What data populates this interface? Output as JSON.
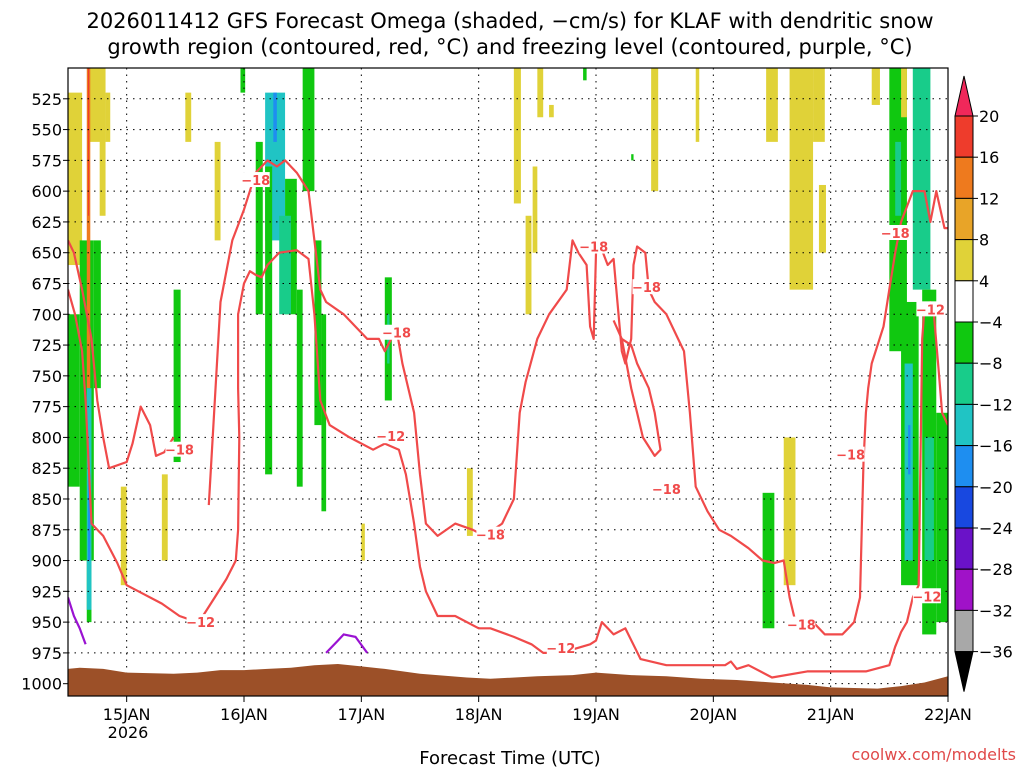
{
  "chart_data": {
    "type": "time-height-forecast",
    "title_line1": "2026011412 GFS Forecast Omega (shaded, −cm/s) for KLAF with dendritic snow",
    "title_line2": "growth region (contoured, red, °C) and freezing level (contoured, purple, °C)",
    "xlabel": "Forecast Time (UTC)",
    "credit": "coolwx.com/modelts",
    "x_ticks": [
      "15JAN",
      "16JAN",
      "17JAN",
      "18JAN",
      "19JAN",
      "20JAN",
      "21JAN",
      "22JAN"
    ],
    "x_subtick": "2026",
    "x_range_days": [
      14.5,
      22.0
    ],
    "y_ticks": [
      525,
      550,
      575,
      600,
      625,
      650,
      675,
      700,
      725,
      750,
      775,
      800,
      825,
      850,
      875,
      900,
      925,
      950,
      975,
      1000
    ],
    "y_range_hpa": [
      500,
      1010
    ],
    "colorbar_labels": [
      "20",
      "16",
      "12",
      "8",
      "4",
      "−4",
      "−8",
      "−12",
      "−16",
      "−20",
      "−24",
      "−28",
      "−32",
      "−36"
    ],
    "colorbar_colors": [
      "#f0285a",
      "#ee3c2c",
      "#ee7a1e",
      "#e8a428",
      "#e0d238",
      "#ffffff",
      "#10c810",
      "#18cc8a",
      "#20c4c4",
      "#1e8ef0",
      "#1848e0",
      "#6a12c8",
      "#a012c8",
      "#a8a8a8",
      "#000000"
    ],
    "contour_color": "#f04a4a",
    "freezing_color": "#9a12d2",
    "ground_color": "#9c5028",
    "contour_labels": [
      {
        "text": "−18",
        "t": 16.1,
        "p": 591
      },
      {
        "text": "−18",
        "t": 15.45,
        "p": 810
      },
      {
        "text": "−12",
        "t": 15.63,
        "p": 950
      },
      {
        "text": "−18",
        "t": 17.3,
        "p": 715
      },
      {
        "text": "−12",
        "t": 17.25,
        "p": 799
      },
      {
        "text": "−18",
        "t": 18.1,
        "p": 879
      },
      {
        "text": "−12",
        "t": 18.7,
        "p": 971
      },
      {
        "text": "−18",
        "t": 18.98,
        "p": 645
      },
      {
        "text": "−18",
        "t": 19.43,
        "p": 678
      },
      {
        "text": "−18",
        "t": 19.6,
        "p": 842
      },
      {
        "text": "−18",
        "t": 20.75,
        "p": 952
      },
      {
        "text": "−18",
        "t": 21.17,
        "p": 814
      },
      {
        "text": "−18",
        "t": 21.55,
        "p": 634
      },
      {
        "text": "−12",
        "t": 21.85,
        "p": 696
      },
      {
        "text": "−12",
        "t": 21.82,
        "p": 929
      }
    ]
  }
}
